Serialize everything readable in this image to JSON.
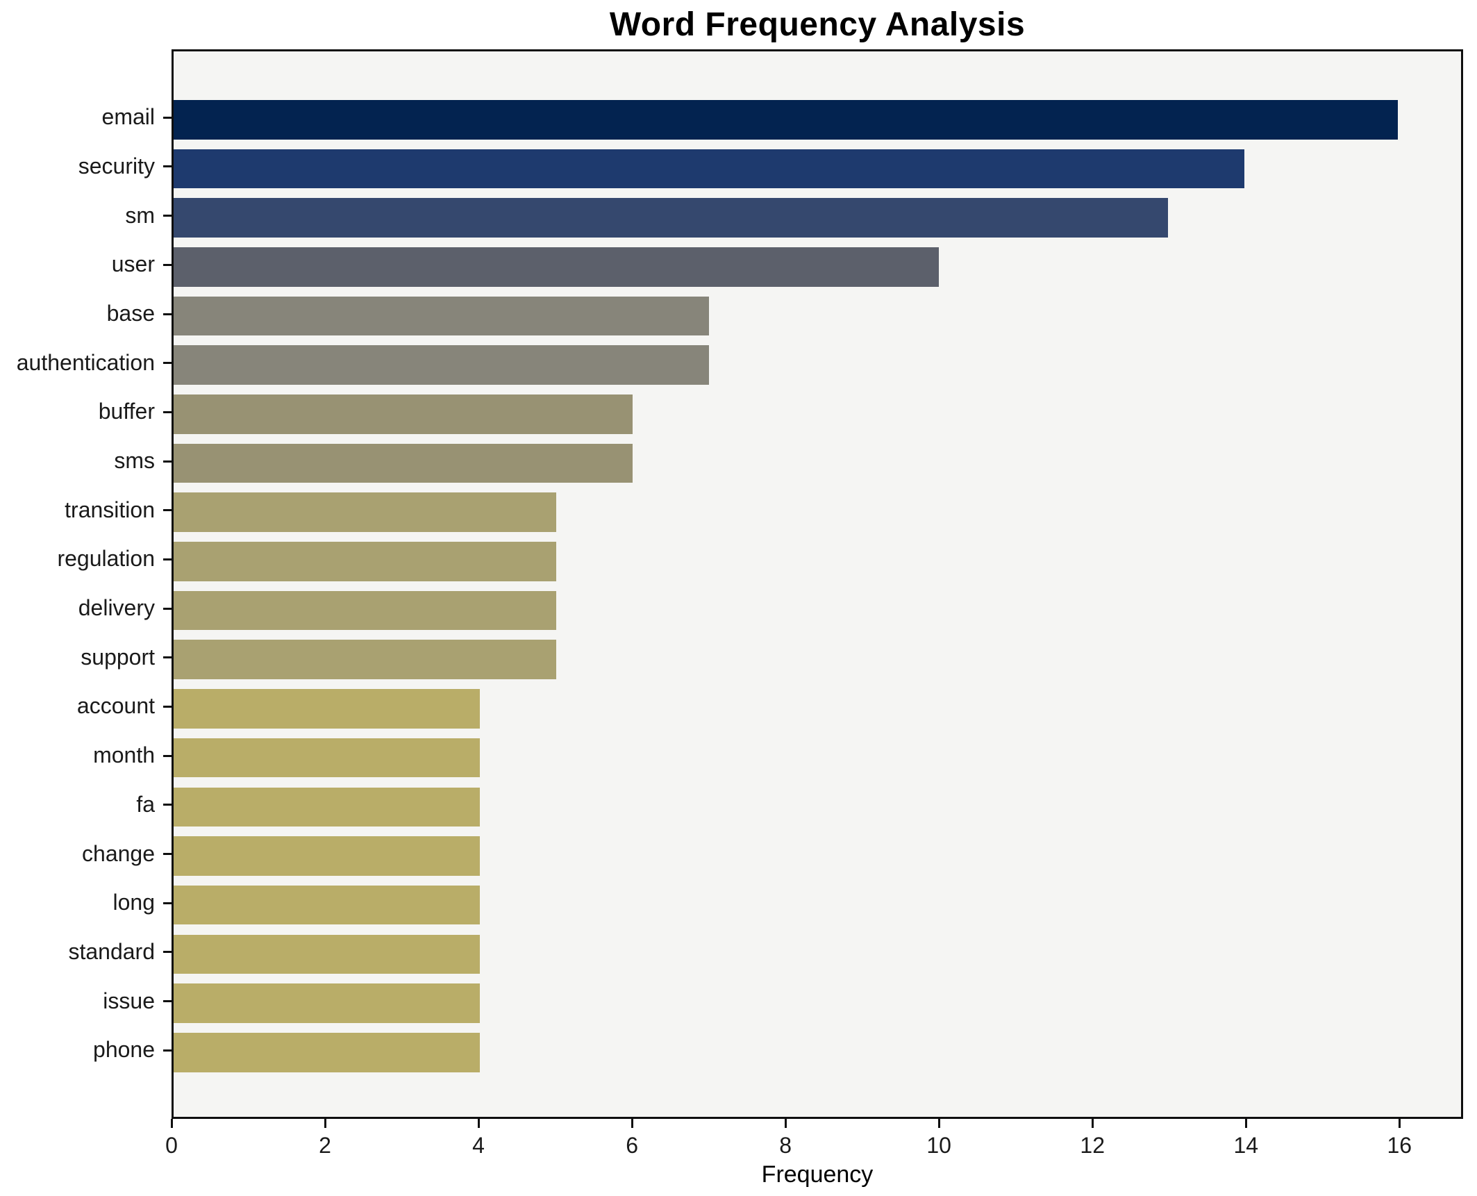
{
  "chart_data": {
    "type": "bar",
    "orientation": "horizontal",
    "title": "Word Frequency Analysis",
    "xlabel": "Frequency",
    "ylabel": "",
    "categories": [
      "email",
      "security",
      "sm",
      "user",
      "base",
      "authentication",
      "buffer",
      "sms",
      "transition",
      "regulation",
      "delivery",
      "support",
      "account",
      "month",
      "fa",
      "change",
      "long",
      "standard",
      "issue",
      "phone"
    ],
    "values": [
      16,
      14,
      13,
      10,
      7,
      7,
      6,
      6,
      5,
      5,
      5,
      5,
      4,
      4,
      4,
      4,
      4,
      4,
      4,
      4
    ],
    "bar_colors": [
      "#032350",
      "#1e3a6e",
      "#35486e",
      "#5c606b",
      "#87857a",
      "#87857a",
      "#989273",
      "#989273",
      "#a9a171",
      "#a9a171",
      "#a9a171",
      "#a9a171",
      "#b9ad68",
      "#b9ad68",
      "#b9ad68",
      "#b9ad68",
      "#b9ad68",
      "#b9ad68",
      "#b9ad68",
      "#b9ad68"
    ],
    "x_ticks": [
      0,
      2,
      4,
      6,
      8,
      10,
      12,
      14,
      16
    ],
    "xlim": [
      0,
      16.83
    ],
    "grid": false,
    "legend": "none",
    "plot_bg": "#f5f5f3",
    "fig_bg": "#ffffff",
    "spine_color": "#0f0f0f"
  }
}
